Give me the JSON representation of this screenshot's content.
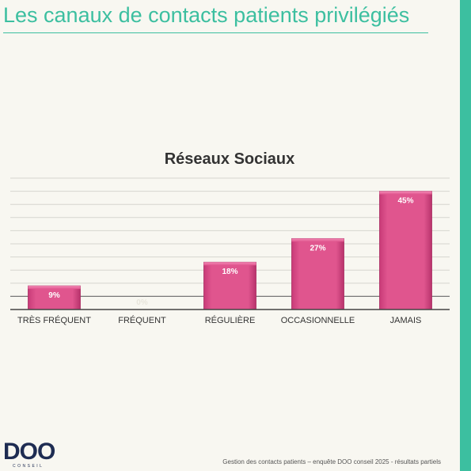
{
  "page": {
    "title": "Les canaux de contacts patients privilégiés",
    "accent_color": "#3cbfa0",
    "footer": "Gestion des contacts patients – enquête DOO conseil 2025 - résultats partiels"
  },
  "logo": {
    "text": "DOO",
    "subtext": "CONSEIL",
    "color": "#1e2c52"
  },
  "chart_data": {
    "type": "bar",
    "title": "Réseaux Sociaux",
    "xlabel": "",
    "ylabel": "",
    "categories": [
      "TRÈS FRÉQUENT",
      "FRÉQUENT",
      "RÉGULIÈRE",
      "OCCASIONNELLE",
      "JAMAIS"
    ],
    "values": [
      9,
      0,
      18,
      27,
      45
    ],
    "value_labels": [
      "9%",
      "0%",
      "18%",
      "27%",
      "45%"
    ],
    "ylim": [
      0,
      50
    ],
    "grid": true,
    "bar_color": "#e0558e"
  }
}
